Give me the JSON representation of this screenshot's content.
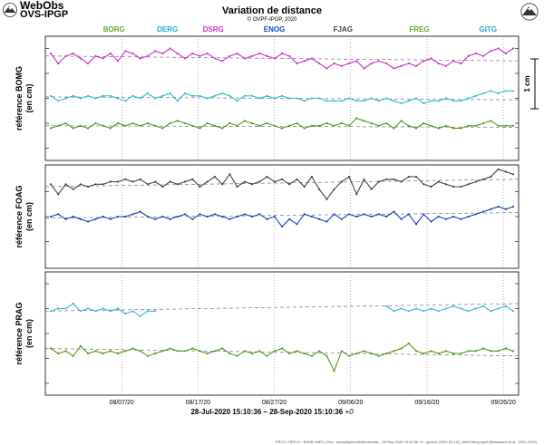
{
  "header": {
    "logo_title": "WebObs",
    "logo_subtitle": "OVS-IPGP",
    "title": "Variation de distance",
    "copyright": "© OVPF-IPGP, 2020"
  },
  "footer": {
    "date_range": "28-Jul-2020 15:10:36 – 28-Sep-2020 15:10:36",
    "date_suffix": "+0",
    "credits": "PROC.GIPSYX / BASELINES_03m - sysop@pitondelafournaise - 28-Sep-2020 15:10:36 +0 - gmsuit (2020-04-12) | WebObs project (Beauducel et al., 2001-2020)"
  },
  "colors": {
    "magenta": "#cc33cc",
    "cyan": "#33bbcc",
    "green": "#559922",
    "gray": "#444444",
    "blue": "#1a44bb",
    "text_green": "#66aa22",
    "text_cyan": "#22aacc",
    "text_magenta": "#cc33cc",
    "text_blue": "#1a44bb",
    "text_gray": "#444444"
  },
  "chart_data": {
    "type": "line",
    "x_range": [
      "2020-07-28",
      "2020-09-28"
    ],
    "x_ticks": [
      "08/07/20",
      "08/17/20",
      "08/27/20",
      "09/06/20",
      "09/16/20",
      "09/26/20"
    ],
    "x_tick_dates": [
      "2020-08-07",
      "2020-08-17",
      "2020-08-27",
      "2020-09-06",
      "2020-09-16",
      "2020-09-26"
    ],
    "scale_bar_label": "1 cm",
    "station_labels": [
      {
        "name": "BORG",
        "color": "text_green",
        "date": "2020-08-06"
      },
      {
        "name": "DERG",
        "color": "text_cyan",
        "date": "2020-08-13"
      },
      {
        "name": "DSRG",
        "color": "text_magenta",
        "date": "2020-08-19"
      },
      {
        "name": "ENOG",
        "color": "text_blue",
        "date": "2020-08-27"
      },
      {
        "name": "FJAG",
        "color": "text_gray",
        "date": "2020-09-05"
      },
      {
        "name": "FREG",
        "color": "text_green",
        "date": "2020-09-15"
      },
      {
        "name": "GITG",
        "color": "text_cyan",
        "date": "2020-09-24"
      }
    ],
    "panels": [
      {
        "label": "référence BOMG",
        "sublabel": "(en cm)",
        "series": [
          {
            "color": "magenta",
            "offset": 0.8,
            "values": [
              0.1,
              -0.1,
              0.05,
              0.1,
              0.0,
              -0.1,
              0.05,
              0.0,
              0.1,
              -0.05,
              0.15,
              0.1,
              0.0,
              0.05,
              0.15,
              0.1,
              0.2,
              0.1,
              0.0,
              0.1,
              0.05,
              0.1,
              0.0,
              -0.05,
              0.05,
              0.1,
              0.0,
              0.05,
              0.1,
              0.05,
              0.0,
              0.1,
              0.05,
              -0.1,
              -0.05,
              0.0,
              -0.1,
              -0.2,
              -0.1,
              -0.15,
              -0.1,
              -0.05,
              -0.2,
              -0.1,
              -0.05,
              -0.1,
              -0.2,
              -0.15,
              -0.1,
              -0.15,
              -0.05,
              0.0,
              -0.1,
              -0.15,
              -0.05,
              -0.1,
              0.05,
              0.1,
              0.05,
              0.15,
              0.2,
              0.1,
              0.2
            ],
            "trend": [
              0.05,
              -0.05
            ]
          },
          {
            "color": "cyan",
            "offset": 0.0,
            "values": [
              0.05,
              -0.05,
              0.0,
              0.05,
              0.0,
              0.05,
              0.0,
              0.05,
              0.05,
              0.0,
              -0.05,
              0.05,
              0.0,
              0.1,
              0.0,
              0.05,
              0.1,
              -0.05,
              0.1,
              0.05,
              0.05,
              0.0,
              0.05,
              0.1,
              0.05,
              -0.05,
              0.05,
              0.05,
              0.0,
              0.05,
              0.0,
              0.05,
              0.0,
              0.0,
              -0.05,
              0.0,
              0.0,
              -0.05,
              -0.05,
              -0.05,
              0.0,
              -0.05,
              -0.05,
              0.0,
              -0.05,
              0.0,
              -0.05,
              -0.1,
              -0.05,
              0.0,
              -0.1,
              -0.05,
              -0.05,
              0.0,
              -0.05,
              -0.05,
              0.0,
              0.05,
              0.1,
              0.15,
              0.1,
              0.15,
              0.15
            ],
            "trend": [
              0.03,
              -0.03
            ]
          },
          {
            "color": "green",
            "offset": -0.55,
            "values": [
              -0.05,
              0.0,
              0.05,
              -0.05,
              0.0,
              -0.05,
              0.05,
              0.0,
              -0.05,
              0.05,
              0.0,
              0.05,
              0.0,
              0.05,
              0.0,
              -0.05,
              0.05,
              0.1,
              0.05,
              0.0,
              -0.05,
              0.05,
              0.0,
              -0.05,
              0.05,
              0.0,
              0.1,
              0.05,
              0.0,
              0.05,
              0.0,
              -0.05,
              0.0,
              0.05,
              -0.05,
              0.0,
              0.0,
              0.05,
              0.0,
              0.05,
              0.0,
              0.15,
              0.1,
              0.05,
              0.0,
              0.05,
              -0.05,
              0.1,
              0.0,
              -0.05,
              0.05,
              0.0,
              -0.05,
              0.0,
              -0.05,
              -0.05,
              0.0,
              0.0,
              0.05,
              0.1,
              0.0,
              0.0,
              0.0
            ],
            "trend": [
              0.0,
              -0.03
            ]
          }
        ]
      },
      {
        "label": "référence FOAG",
        "sublabel": "(en cm)",
        "series": [
          {
            "color": "gray",
            "offset": 0.65,
            "values": [
              0.0,
              -0.2,
              0.0,
              -0.1,
              0.0,
              -0.05,
              0.0,
              0.0,
              0.05,
              0.05,
              0.1,
              0.05,
              0.1,
              0.0,
              0.05,
              -0.05,
              0.05,
              0.0,
              0.05,
              0.1,
              -0.05,
              0.05,
              0.15,
              0.0,
              0.2,
              -0.05,
              0.05,
              0.0,
              0.05,
              0.15,
              0.05,
              0.1,
              0.0,
              0.1,
              -0.05,
              0.15,
              -0.1,
              -0.3,
              -0.1,
              0.05,
              0.15,
              -0.2,
              0.1,
              -0.1,
              0.05,
              0.1,
              0.1,
              0.05,
              0.15,
              0.15,
              0.0,
              -0.05,
              0.05,
              0.0,
              -0.05,
              -0.05,
              0.0,
              0.05,
              0.1,
              0.15,
              0.3,
              0.25,
              0.2
            ],
            "trend": [
              -0.05,
              0.1
            ]
          },
          {
            "color": "blue",
            "offset": 0.0,
            "values": [
              0.0,
              0.05,
              -0.05,
              0.0,
              -0.05,
              -0.1,
              -0.05,
              0.0,
              -0.05,
              0.0,
              0.0,
              0.05,
              0.1,
              0.0,
              -0.05,
              0.0,
              -0.05,
              0.0,
              0.05,
              -0.05,
              0.05,
              0.0,
              0.05,
              0.0,
              -0.05,
              0.0,
              0.05,
              0.0,
              0.05,
              -0.05,
              0.0,
              -0.2,
              -0.05,
              -0.15,
              0.05,
              0.0,
              -0.05,
              -0.1,
              0.05,
              -0.05,
              0.05,
              0.0,
              0.05,
              0.0,
              0.05,
              0.0,
              0.1,
              -0.05,
              0.05,
              -0.15,
              0.05,
              -0.1,
              0.0,
              -0.05,
              0.0,
              -0.05,
              0.0,
              0.05,
              0.1,
              0.15,
              0.2,
              0.15,
              0.2
            ],
            "trend": [
              -0.03,
              0.08
            ]
          }
        ]
      },
      {
        "label": "référence PRAG",
        "sublabel": "(en cm)",
        "series": [
          {
            "color": "cyan",
            "offset": 0.45,
            "values": [
              0.0,
              0.05,
              0.05,
              0.15,
              0.0,
              0.05,
              0.0,
              0.05,
              0.0,
              0.05,
              -0.05,
              0.0,
              -0.1,
              0.0,
              0.0,
              null,
              null,
              null,
              null,
              null,
              null,
              null,
              null,
              null,
              null,
              null,
              null,
              null,
              null,
              null,
              null,
              null,
              null,
              null,
              null,
              null,
              null,
              null,
              null,
              null,
              null,
              null,
              null,
              null,
              null,
              0.1,
              0.0,
              0.05,
              0.0,
              0.05,
              0.0,
              0.05,
              0.0,
              0.05,
              0.1,
              0.05,
              0.0,
              0.05,
              0.1,
              0.0,
              0.05,
              0.1,
              0.0
            ],
            "trend": [
              0.0,
              0.15
            ]
          },
          {
            "color": "green",
            "offset": -0.35,
            "values": [
              0.05,
              -0.05,
              0.0,
              -0.1,
              0.1,
              -0.05,
              0.0,
              -0.05,
              0.0,
              -0.05,
              0.0,
              0.05,
              0.0,
              -0.1,
              -0.05,
              0.0,
              0.05,
              0.0,
              0.0,
              0.05,
              0.0,
              -0.05,
              0.0,
              0.05,
              -0.05,
              -0.1,
              0.0,
              -0.05,
              0.0,
              -0.1,
              0.0,
              0.05,
              -0.05,
              0.0,
              -0.05,
              -0.1,
              0.0,
              -0.1,
              -0.4,
              0.0,
              -0.1,
              -0.05,
              0.0,
              -0.05,
              -0.1,
              -0.05,
              0.0,
              0.05,
              0.15,
              0.0,
              -0.05,
              0.0,
              -0.05,
              0.0,
              -0.05,
              -0.05,
              0.0,
              0.0,
              0.05,
              0.0,
              0.0,
              0.05,
              0.0
            ],
            "trend": [
              0.05,
              -0.1
            ]
          }
        ]
      }
    ]
  }
}
